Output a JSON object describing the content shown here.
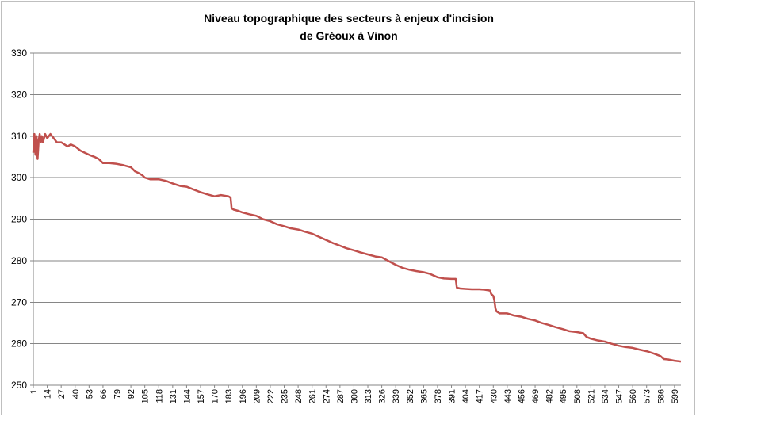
{
  "chart_data": {
    "type": "line",
    "title_lines": [
      "Niveau topographique des secteurs à enjeux d'incision",
      "de Gréoux à Vinon"
    ],
    "xlabel": "",
    "ylabel": "",
    "ylim": [
      250,
      330
    ],
    "y_ticks": [
      250,
      260,
      270,
      280,
      290,
      300,
      310,
      320,
      330
    ],
    "x_range": [
      1,
      605
    ],
    "x_tick_labels": [
      1,
      14,
      27,
      40,
      53,
      66,
      79,
      92,
      105,
      118,
      131,
      144,
      157,
      170,
      183,
      196,
      209,
      222,
      235,
      248,
      261,
      274,
      287,
      300,
      313,
      326,
      339,
      352,
      365,
      378,
      391,
      404,
      417,
      430,
      443,
      456,
      469,
      482,
      495,
      508,
      521,
      534,
      547,
      560,
      573,
      586,
      599
    ],
    "grid": "horizontal",
    "legend": "none",
    "series": [
      {
        "color": "#c0504d",
        "points": [
          [
            1,
            306
          ],
          [
            2,
            310.5
          ],
          [
            3,
            305.5
          ],
          [
            4,
            310
          ],
          [
            5,
            304.5
          ],
          [
            6,
            309
          ],
          [
            7,
            310.5
          ],
          [
            8,
            308.5
          ],
          [
            9,
            310
          ],
          [
            10,
            308.5
          ],
          [
            12,
            310.5
          ],
          [
            14,
            309.5
          ],
          [
            17,
            310.5
          ],
          [
            20,
            309.5
          ],
          [
            23,
            308.5
          ],
          [
            27,
            308.5
          ],
          [
            30,
            308
          ],
          [
            33,
            307.5
          ],
          [
            36,
            308
          ],
          [
            40,
            307.5
          ],
          [
            45,
            306.5
          ],
          [
            53,
            305.5
          ],
          [
            58,
            305
          ],
          [
            62,
            304.5
          ],
          [
            66,
            303.5
          ],
          [
            72,
            303.5
          ],
          [
            79,
            303.3
          ],
          [
            85,
            303
          ],
          [
            92,
            302.5
          ],
          [
            96,
            301.5
          ],
          [
            100,
            301
          ],
          [
            103,
            300.5
          ],
          [
            105,
            300
          ],
          [
            110,
            299.6
          ],
          [
            118,
            299.6
          ],
          [
            125,
            299.2
          ],
          [
            131,
            298.6
          ],
          [
            138,
            298
          ],
          [
            144,
            297.8
          ],
          [
            150,
            297.2
          ],
          [
            157,
            296.5
          ],
          [
            163,
            296
          ],
          [
            170,
            295.5
          ],
          [
            176,
            295.8
          ],
          [
            183,
            295.5
          ],
          [
            185,
            295.2
          ],
          [
            186,
            292.6
          ],
          [
            188,
            292.3
          ],
          [
            192,
            292
          ],
          [
            196,
            291.6
          ],
          [
            202,
            291.2
          ],
          [
            209,
            290.8
          ],
          [
            215,
            290
          ],
          [
            222,
            289.5
          ],
          [
            228,
            288.8
          ],
          [
            235,
            288.3
          ],
          [
            241,
            287.8
          ],
          [
            248,
            287.5
          ],
          [
            254,
            287
          ],
          [
            261,
            286.5
          ],
          [
            267,
            285.8
          ],
          [
            274,
            285
          ],
          [
            280,
            284.3
          ],
          [
            287,
            283.6
          ],
          [
            293,
            283
          ],
          [
            300,
            282.5
          ],
          [
            306,
            282
          ],
          [
            313,
            281.5
          ],
          [
            320,
            281
          ],
          [
            326,
            280.8
          ],
          [
            333,
            279.8
          ],
          [
            339,
            279
          ],
          [
            345,
            278.3
          ],
          [
            352,
            277.8
          ],
          [
            358,
            277.5
          ],
          [
            365,
            277.2
          ],
          [
            371,
            276.8
          ],
          [
            378,
            276
          ],
          [
            384,
            275.7
          ],
          [
            391,
            275.6
          ],
          [
            395,
            275.6
          ],
          [
            396,
            273.5
          ],
          [
            399,
            273.3
          ],
          [
            404,
            273.2
          ],
          [
            410,
            273.1
          ],
          [
            417,
            273.1
          ],
          [
            422,
            273
          ],
          [
            427,
            272.8
          ],
          [
            428,
            272
          ],
          [
            430,
            271.5
          ],
          [
            431,
            270.5
          ],
          [
            432,
            268.5
          ],
          [
            433,
            267.8
          ],
          [
            436,
            267.3
          ],
          [
            443,
            267.3
          ],
          [
            449,
            266.8
          ],
          [
            456,
            266.5
          ],
          [
            462,
            266
          ],
          [
            469,
            265.6
          ],
          [
            475,
            265
          ],
          [
            482,
            264.5
          ],
          [
            488,
            264
          ],
          [
            495,
            263.5
          ],
          [
            501,
            263
          ],
          [
            508,
            262.8
          ],
          [
            514,
            262.5
          ],
          [
            517,
            261.6
          ],
          [
            521,
            261.2
          ],
          [
            527,
            260.8
          ],
          [
            534,
            260.5
          ],
          [
            540,
            260
          ],
          [
            547,
            259.5
          ],
          [
            553,
            259.2
          ],
          [
            560,
            259
          ],
          [
            566,
            258.6
          ],
          [
            573,
            258.2
          ],
          [
            580,
            257.6
          ],
          [
            586,
            257
          ],
          [
            589,
            256.3
          ],
          [
            593,
            256.2
          ],
          [
            599,
            255.9
          ],
          [
            605,
            255.7
          ]
        ]
      }
    ]
  }
}
